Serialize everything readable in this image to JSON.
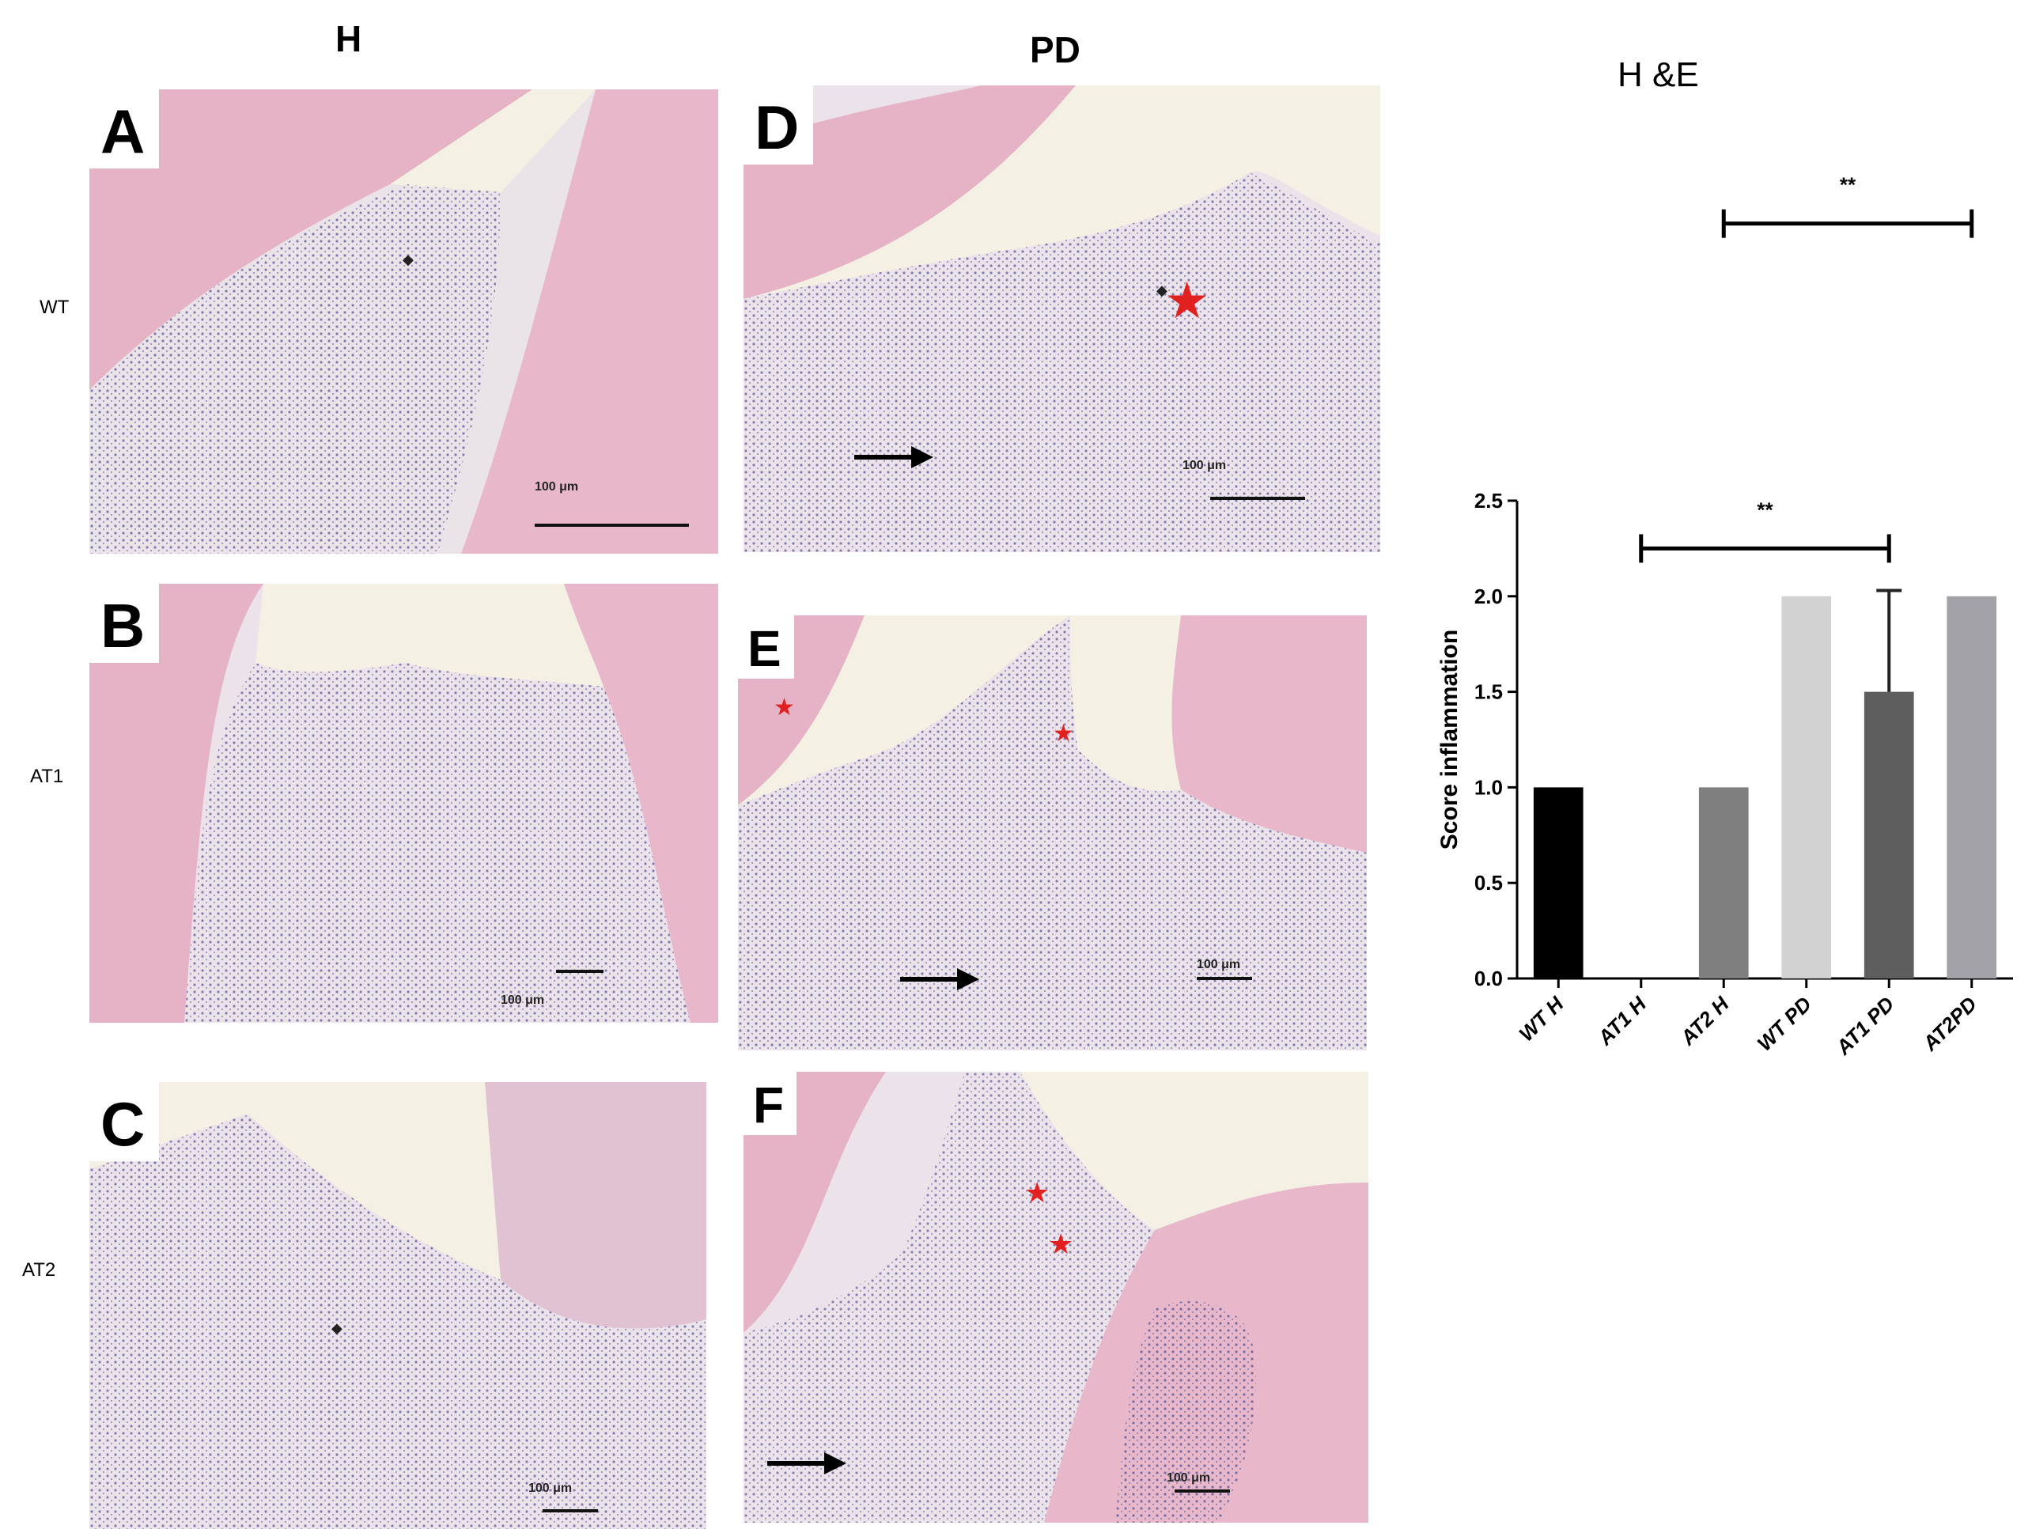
{
  "column_headers": {
    "healthy": "H",
    "pd": "PD"
  },
  "row_labels": {
    "wt": "WT",
    "at1": "AT1",
    "at2": "AT2"
  },
  "panels": {
    "A": {
      "letter": "A",
      "scale": "100 μm"
    },
    "B": {
      "letter": "B",
      "scale": "100 μm"
    },
    "C": {
      "letter": "C",
      "scale": "100 μm"
    },
    "D": {
      "letter": "D",
      "scale": "100 μm"
    },
    "E": {
      "letter": "E",
      "scale": "100 μm"
    },
    "F": {
      "letter": "F",
      "scale": "100 μm"
    }
  },
  "symbols": {
    "star": "★",
    "diamond": "◆"
  },
  "colors": {
    "star": "#e0211f",
    "stain_pink": "#e6b3c6",
    "stain_purple": "#5a5a9a"
  },
  "chart_data": {
    "type": "bar",
    "title": "H &E",
    "ylabel": "Score inflammation",
    "xlabel": "",
    "ylim": [
      0,
      2.5
    ],
    "yticks": [
      0.0,
      0.5,
      1.0,
      1.5,
      2.0,
      2.5
    ],
    "ytick_labels": [
      "0.0",
      "0.5",
      "1.0",
      "1.5",
      "2.0",
      "2.5"
    ],
    "categories": [
      "WT H",
      "AT1 H",
      "AT2 H",
      "WT PD",
      "AT1 PD",
      "AT2PD"
    ],
    "values": [
      1.0,
      0.0,
      1.0,
      2.0,
      1.5,
      2.0
    ],
    "error_upper": [
      0,
      0,
      0,
      0,
      0.53,
      0
    ],
    "bar_colors": [
      "#000000",
      "#3a3a3a",
      "#7f7f7f",
      "#d2d2d2",
      "#5e5e5e",
      "#a2a2a8"
    ],
    "significance": [
      {
        "from": "AT1 H",
        "to": "AT1 PD",
        "label": "**"
      },
      {
        "from": "AT2 H",
        "to": "AT2PD",
        "label": "**"
      }
    ],
    "grid": false,
    "legend": "none"
  }
}
